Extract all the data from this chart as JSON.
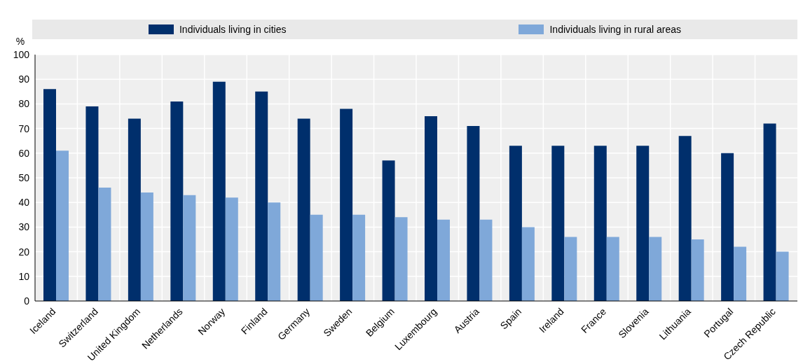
{
  "chart_data": {
    "type": "bar",
    "ylabel": "%",
    "categories": [
      "Iceland",
      "Switzerland",
      "United Kingdom",
      "Netherlands",
      "Norway",
      "Finland",
      "Germany",
      "Sweden",
      "Belgium",
      "Luxembourg",
      "Austria",
      "Spain",
      "Ireland",
      "France",
      "Slovenia",
      "Lithuania",
      "Portugal",
      "Czech Republic"
    ],
    "series": [
      {
        "name": "Individuals living in cities",
        "color": "#002f6c",
        "values": [
          86,
          79,
          74,
          81,
          89,
          85,
          74,
          78,
          57,
          75,
          71,
          63,
          63,
          63,
          63,
          67,
          60,
          72
        ]
      },
      {
        "name": "Individuals living in rural areas",
        "color": "#7fa8d9",
        "values": [
          61,
          46,
          44,
          43,
          42,
          40,
          35,
          35,
          34,
          33,
          33,
          30,
          26,
          26,
          26,
          25,
          22,
          20
        ]
      }
    ],
    "ylim": [
      0,
      100
    ],
    "yticks": [
      0,
      10,
      20,
      30,
      40,
      50,
      60,
      70,
      80,
      90,
      100
    ],
    "grid": true,
    "legend": "top"
  }
}
